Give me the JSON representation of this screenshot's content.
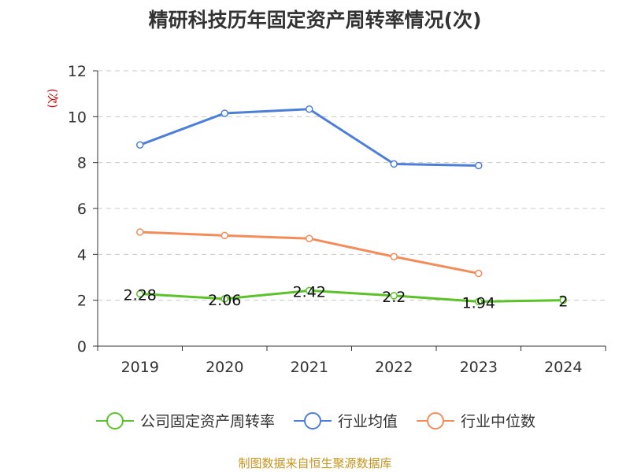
{
  "chart_data": {
    "type": "line",
    "title": "精研科技历年固定资产周转率情况(次)",
    "ylabel": "(次)",
    "xlabel": "",
    "categories": [
      "2019",
      "2020",
      "2021",
      "2022",
      "2023",
      "2024"
    ],
    "ylim": [
      0,
      12
    ],
    "yticks": [
      0,
      2,
      4,
      6,
      8,
      10,
      12
    ],
    "grid": true,
    "legend_position": "bottom",
    "series": [
      {
        "name": "公司固定资产周转率",
        "color": "#5cc22a",
        "values": [
          2.28,
          2.06,
          2.42,
          2.2,
          1.94,
          2
        ],
        "labels": [
          "2.28",
          "2.06",
          "2.42",
          "2.2",
          "1.94",
          "2"
        ]
      },
      {
        "name": "行业均值",
        "color": "#4d7fd9",
        "values": [
          8.77,
          10.15,
          10.33,
          7.94,
          7.87,
          null
        ]
      },
      {
        "name": "行业中位数",
        "color": "#f48c5a",
        "values": [
          4.97,
          4.82,
          4.69,
          3.9,
          3.17,
          null
        ]
      }
    ]
  },
  "source": "制图数据来自恒生聚源数据库"
}
